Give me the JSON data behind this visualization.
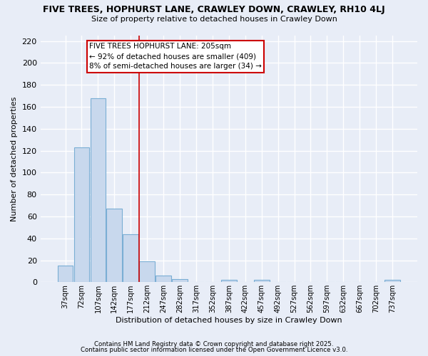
{
  "title": "FIVE TREES, HOPHURST LANE, CRAWLEY DOWN, CRAWLEY, RH10 4LJ",
  "subtitle": "Size of property relative to detached houses in Crawley Down",
  "xlabel": "Distribution of detached houses by size in Crawley Down",
  "ylabel": "Number of detached properties",
  "bar_labels": [
    "37sqm",
    "72sqm",
    "107sqm",
    "142sqm",
    "177sqm",
    "212sqm",
    "247sqm",
    "282sqm",
    "317sqm",
    "352sqm",
    "387sqm",
    "422sqm",
    "457sqm",
    "492sqm",
    "527sqm",
    "562sqm",
    "597sqm",
    "632sqm",
    "667sqm",
    "702sqm",
    "737sqm"
  ],
  "bar_values": [
    15,
    123,
    168,
    67,
    44,
    19,
    6,
    3,
    0,
    0,
    2,
    0,
    2,
    0,
    0,
    0,
    0,
    0,
    0,
    0,
    2
  ],
  "bar_color": "#c8d8ed",
  "bar_edge_color": "#7aaed4",
  "vline_x": 4.5,
  "vline_color": "#cc0000",
  "annotation_title": "FIVE TREES HOPHURST LANE: 205sqm",
  "annotation_line1": "← 92% of detached houses are smaller (409)",
  "annotation_line2": "8% of semi-detached houses are larger (34) →",
  "ylim": [
    0,
    225
  ],
  "yticks": [
    0,
    20,
    40,
    60,
    80,
    100,
    120,
    140,
    160,
    180,
    200,
    220
  ],
  "background_color": "#e8edf7",
  "plot_bg_color": "#e8edf7",
  "grid_color": "#ffffff",
  "footer1": "Contains HM Land Registry data © Crown copyright and database right 2025.",
  "footer2": "Contains public sector information licensed under the Open Government Licence v3.0."
}
